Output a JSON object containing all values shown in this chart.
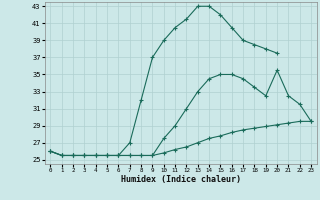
{
  "bg_color": "#cce8e8",
  "grid_color": "#b0d0d0",
  "line_color": "#1a6b5a",
  "xlabel": "Humidex (Indice chaleur)",
  "ylim": [
    24.5,
    43.5
  ],
  "xlim": [
    -0.5,
    23.5
  ],
  "yticks": [
    25,
    27,
    29,
    31,
    33,
    35,
    37,
    39,
    41,
    43
  ],
  "xticks": [
    0,
    1,
    2,
    3,
    4,
    5,
    6,
    7,
    8,
    9,
    10,
    11,
    12,
    13,
    14,
    15,
    16,
    17,
    18,
    19,
    20,
    21,
    22,
    23
  ],
  "series": [
    {
      "x": [
        0,
        1,
        2,
        3,
        4,
        5,
        6,
        7,
        8,
        9,
        10,
        11,
        12,
        13,
        14,
        15,
        16,
        17,
        18,
        19,
        20,
        21,
        22,
        23
      ],
      "y": [
        26,
        25.5,
        25.5,
        25.5,
        25.5,
        25.5,
        25.5,
        25.5,
        25.5,
        25.5,
        25.8,
        26.2,
        26.5,
        27.0,
        27.5,
        27.8,
        28.2,
        28.5,
        28.7,
        28.9,
        29.1,
        29.3,
        29.5,
        29.5
      ]
    },
    {
      "x": [
        0,
        1,
        2,
        3,
        4,
        5,
        6,
        7,
        8,
        9,
        10,
        11,
        12,
        13,
        14,
        15,
        16,
        17,
        18,
        19,
        20,
        21,
        22,
        23
      ],
      "y": [
        26,
        25.5,
        25.5,
        25.5,
        25.5,
        25.5,
        25.5,
        25.5,
        25.5,
        25.5,
        27.5,
        29.0,
        31.0,
        33.0,
        34.5,
        35.0,
        35.0,
        34.5,
        33.5,
        32.5,
        35.5,
        32.5,
        31.5,
        29.5
      ]
    },
    {
      "x": [
        0,
        1,
        2,
        3,
        4,
        5,
        6,
        7,
        8,
        9,
        10,
        11,
        12,
        13,
        14,
        15,
        16,
        17,
        18,
        19,
        20
      ],
      "y": [
        26,
        25.5,
        25.5,
        25.5,
        25.5,
        25.5,
        25.5,
        27.0,
        32.0,
        37.0,
        39.0,
        40.5,
        41.5,
        43.0,
        43.0,
        42.0,
        40.5,
        39.0,
        38.5,
        38.0,
        37.5
      ]
    }
  ]
}
